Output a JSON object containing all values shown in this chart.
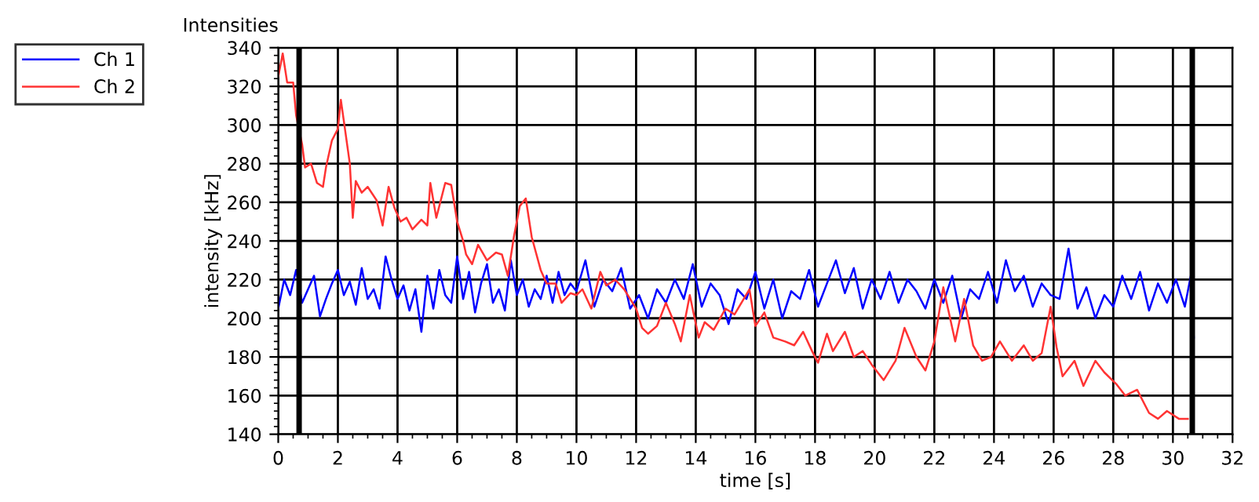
{
  "chart_data": {
    "type": "line",
    "title": "Intensities",
    "xlabel": "time [s]",
    "ylabel": "intensity [kHz]",
    "xlim": [
      0,
      32
    ],
    "ylim": [
      140,
      340
    ],
    "xticks": [
      0,
      2,
      4,
      6,
      8,
      10,
      12,
      14,
      16,
      18,
      20,
      22,
      24,
      26,
      28,
      30,
      32
    ],
    "yticks": [
      140,
      160,
      180,
      200,
      220,
      240,
      260,
      280,
      300,
      320,
      340
    ],
    "grid": true,
    "legend": "top left",
    "line_style": "solid",
    "marker": "none",
    "ref_lines": [
      {
        "axis": "x",
        "value": 0.7,
        "color": "#000000"
      },
      {
        "axis": "x",
        "value": 30.65,
        "color": "#000000"
      }
    ],
    "series": [
      {
        "name": "Ch 1",
        "color": "#0000ff",
        "x": [
          0,
          0.2,
          0.4,
          0.6,
          0.8,
          1.0,
          1.2,
          1.4,
          1.6,
          1.8,
          2.0,
          2.2,
          2.4,
          2.6,
          2.8,
          3.0,
          3.2,
          3.4,
          3.6,
          3.8,
          4.0,
          4.2,
          4.4,
          4.6,
          4.8,
          5.0,
          5.2,
          5.4,
          5.6,
          5.8,
          6.0,
          6.2,
          6.4,
          6.6,
          6.8,
          7.0,
          7.2,
          7.4,
          7.6,
          7.8,
          8.0,
          8.2,
          8.4,
          8.6,
          8.8,
          9.0,
          9.2,
          9.4,
          9.6,
          9.8,
          10.0,
          10.3,
          10.6,
          10.9,
          11.2,
          11.5,
          11.8,
          12.1,
          12.4,
          12.7,
          13.0,
          13.3,
          13.6,
          13.9,
          14.2,
          14.5,
          14.8,
          15.1,
          15.4,
          15.7,
          16.0,
          16.3,
          16.6,
          16.9,
          17.2,
          17.5,
          17.8,
          18.1,
          18.4,
          18.7,
          19.0,
          19.3,
          19.6,
          19.9,
          20.2,
          20.5,
          20.8,
          21.1,
          21.4,
          21.7,
          22.0,
          22.3,
          22.6,
          22.9,
          23.2,
          23.5,
          23.8,
          24.1,
          24.4,
          24.7,
          25.0,
          25.3,
          25.6,
          25.9,
          26.2,
          26.5,
          26.8,
          27.1,
          27.4,
          27.7,
          28.0,
          28.3,
          28.6,
          28.9,
          29.2,
          29.5,
          29.8,
          30.1,
          30.4,
          30.6,
          30.7
        ],
        "values": [
          205,
          220,
          212,
          225,
          208,
          215,
          222,
          201,
          210,
          218,
          225,
          212,
          219,
          207,
          226,
          210,
          215,
          205,
          232,
          220,
          210,
          217,
          204,
          215,
          193,
          222,
          205,
          225,
          212,
          208,
          232,
          210,
          224,
          203,
          218,
          228,
          208,
          215,
          204,
          230,
          212,
          220,
          206,
          215,
          210,
          222,
          208,
          224,
          212,
          218,
          214,
          230,
          206,
          220,
          214,
          226,
          205,
          212,
          200,
          215,
          208,
          220,
          210,
          228,
          206,
          218,
          212,
          197,
          215,
          210,
          224,
          205,
          220,
          200,
          214,
          210,
          225,
          206,
          218,
          230,
          213,
          226,
          205,
          220,
          210,
          224,
          208,
          220,
          214,
          205,
          220,
          208,
          222,
          200,
          215,
          210,
          224,
          208,
          230,
          214,
          222,
          206,
          218,
          212,
          210,
          236,
          205,
          216,
          200,
          212,
          206,
          222,
          210,
          224,
          204,
          218,
          208,
          220,
          206,
          222,
          190
        ]
      },
      {
        "name": "Ch 2",
        "color": "#ff3333",
        "x": [
          0,
          0.15,
          0.3,
          0.5,
          0.6,
          0.8,
          0.9,
          1.1,
          1.3,
          1.5,
          1.6,
          1.8,
          2.0,
          2.1,
          2.2,
          2.4,
          2.5,
          2.6,
          2.8,
          3.0,
          3.3,
          3.5,
          3.7,
          3.9,
          4.1,
          4.3,
          4.5,
          4.8,
          5.0,
          5.1,
          5.3,
          5.6,
          5.8,
          6.0,
          6.2,
          6.3,
          6.5,
          6.7,
          7.0,
          7.3,
          7.5,
          7.7,
          7.9,
          8.1,
          8.3,
          8.5,
          8.8,
          9.0,
          9.3,
          9.5,
          9.8,
          10.0,
          10.2,
          10.5,
          10.8,
          11.0,
          11.3,
          11.6,
          12.0,
          12.2,
          12.4,
          12.7,
          13.0,
          13.3,
          13.5,
          13.8,
          14.1,
          14.3,
          14.6,
          15.0,
          15.3,
          15.8,
          16.0,
          16.3,
          16.6,
          17.0,
          17.3,
          17.6,
          17.9,
          18.1,
          18.4,
          18.6,
          19.0,
          19.3,
          19.6,
          19.9,
          20.3,
          20.7,
          21.0,
          21.4,
          21.7,
          22.0,
          22.3,
          22.7,
          23.0,
          23.3,
          23.6,
          23.9,
          24.2,
          24.6,
          25.0,
          25.3,
          25.6,
          25.9,
          26.1,
          26.3,
          26.7,
          27.0,
          27.4,
          27.7,
          28.1,
          28.4,
          28.8,
          29.2,
          29.5,
          29.8,
          30.2,
          30.5
        ],
        "values": [
          325,
          337,
          322,
          322,
          305,
          290,
          278,
          280,
          270,
          268,
          278,
          292,
          298,
          313,
          302,
          280,
          252,
          271,
          265,
          268,
          261,
          248,
          268,
          257,
          250,
          252,
          246,
          251,
          248,
          270,
          252,
          270,
          269,
          250,
          240,
          233,
          228,
          238,
          230,
          234,
          233,
          222,
          242,
          258,
          262,
          242,
          225,
          218,
          218,
          208,
          213,
          212,
          215,
          205,
          224,
          217,
          220,
          215,
          205,
          195,
          192,
          196,
          208,
          197,
          188,
          212,
          190,
          198,
          194,
          205,
          202,
          215,
          196,
          203,
          190,
          188,
          186,
          193,
          183,
          177,
          192,
          183,
          193,
          180,
          183,
          176,
          168,
          178,
          195,
          180,
          173,
          188,
          216,
          188,
          210,
          186,
          178,
          180,
          188,
          178,
          186,
          178,
          182,
          206,
          185,
          170,
          178,
          165,
          178,
          172,
          166,
          160,
          163,
          151,
          148,
          152,
          148,
          148
        ]
      }
    ]
  }
}
